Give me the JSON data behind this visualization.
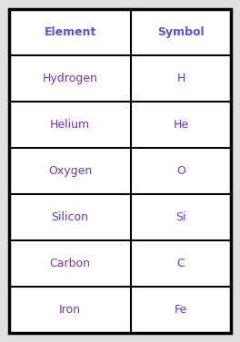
{
  "elements": [
    "Hydrogen",
    "Helium",
    "Oxygen",
    "Silicon",
    "Carbon",
    "Iron"
  ],
  "symbols": [
    "H",
    "He",
    "O",
    "Si",
    "C",
    "Fe"
  ],
  "header_element": "Element",
  "header_symbol": "Symbol",
  "bg_color": "#e0e0e0",
  "table_bg_color": "#ffffff",
  "border_color": "#000000",
  "header_text_color": "#5555cc",
  "cell_text_color": "#7733aa",
  "header_fontsize": 9,
  "cell_fontsize": 9,
  "outer_border_lw": 2.5,
  "inner_border_lw": 1.5,
  "fig_width": 2.64,
  "fig_height": 3.77
}
